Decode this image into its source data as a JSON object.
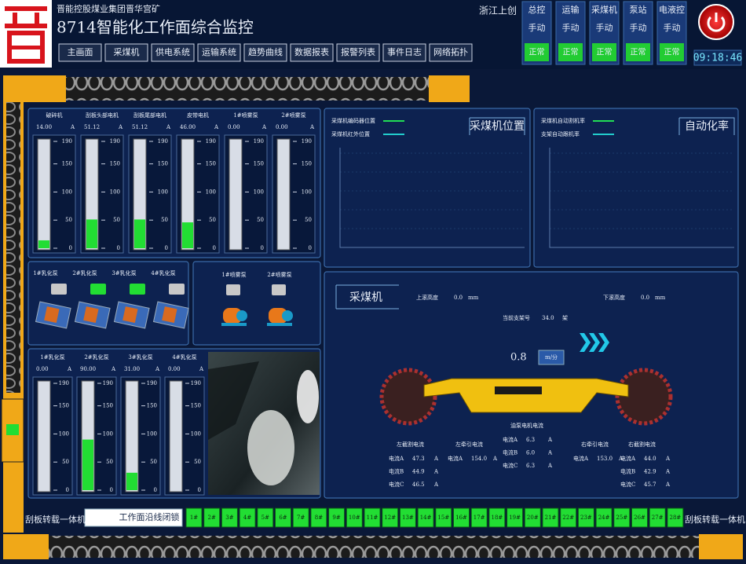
{
  "header": {
    "company": "晋能控股煤业集团晋华宫矿",
    "title": "8714智能化工作面综合监控",
    "brand": "浙江上创",
    "time": "09:18:46",
    "nav": [
      "主画面",
      "采煤机",
      "供电系统",
      "运输系统",
      "趋势曲线",
      "数据报表",
      "报警列表",
      "事件日志",
      "网络拓扑"
    ],
    "status": [
      {
        "name": "总控",
        "mode": "手动",
        "state": "正常"
      },
      {
        "name": "运输",
        "mode": "手动",
        "state": "正常"
      },
      {
        "name": "采煤机",
        "mode": "手动",
        "state": "正常"
      },
      {
        "name": "泵站",
        "mode": "手动",
        "state": "正常"
      },
      {
        "name": "电液控",
        "mode": "手动",
        "state": "正常"
      }
    ]
  },
  "motor_panel": {
    "unit": "A",
    "lim": [
      0,
      190
    ],
    "ticks": [
      0,
      50,
      100,
      150,
      190
    ],
    "gauges": [
      {
        "name": "破碎机",
        "value": 14,
        "label": "14.00"
      },
      {
        "name": "刮板头部电机",
        "value": 51.12,
        "label": "51.12"
      },
      {
        "name": "刮板尾部电机",
        "value": 51.12,
        "label": "51.12"
      },
      {
        "name": "皮带电机",
        "value": 46,
        "label": "46.00"
      },
      {
        "name": "1#喷雾泵",
        "value": 0,
        "label": "0.00"
      },
      {
        "name": "2#喷雾泵",
        "value": 0,
        "label": "0.00"
      }
    ]
  },
  "pump_panel": {
    "pumps": [
      {
        "name": "1#乳化泵",
        "status_color": "#c8c8c8"
      },
      {
        "name": "2#乳化泵",
        "status_color": "#22dd33"
      },
      {
        "name": "3#乳化泵",
        "status_color": "#22dd33"
      },
      {
        "name": "4#乳化泵",
        "status_color": "#c8c8c8"
      }
    ]
  },
  "spray_panel": {
    "pumps": [
      {
        "name": "1#喷雾泵",
        "status_color": "#c8c8c8"
      },
      {
        "name": "2#喷雾泵",
        "status_color": "#c8c8c8"
      }
    ]
  },
  "pressure_panel": {
    "unit": "A",
    "lim": [
      0,
      190
    ],
    "ticks": [
      0,
      50,
      100,
      150,
      190
    ],
    "gauges": [
      {
        "name": "1#乳化泵",
        "value": 0,
        "label": "0.00"
      },
      {
        "name": "2#乳化泵",
        "value": 90,
        "label": "90.00"
      },
      {
        "name": "3#乳化泵",
        "value": 31,
        "label": "31.00"
      },
      {
        "name": "4#乳化泵",
        "value": 0,
        "label": "0.00"
      }
    ]
  },
  "position_chart": {
    "title": "采煤机位置",
    "series": [
      {
        "name": "采煤机编码器位置",
        "color": "#22dd55"
      },
      {
        "name": "采煤机红外位置",
        "color": "#22cccc"
      }
    ]
  },
  "automation_chart": {
    "title": "自动化率",
    "series": [
      {
        "name": "采煤机自动割机率",
        "color": "#22dd55"
      },
      {
        "name": "支架自动跟机率",
        "color": "#22cccc"
      }
    ]
  },
  "shearer": {
    "title": "采煤机",
    "upper": {
      "label": "上滚高度",
      "value": "0.0",
      "unit": "mm"
    },
    "lower": {
      "label": "下滚高度",
      "value": "0.0",
      "unit": "mm"
    },
    "support": {
      "label": "当前支架号",
      "value": "34.0",
      "unit": "架"
    },
    "speed": {
      "value": "0.8",
      "unit": "m/分"
    },
    "currents": [
      {
        "title": "左截割电流",
        "rows": [
          {
            "label": "电流A",
            "value": "47.3",
            "unit": "A"
          },
          {
            "label": "电流B",
            "value": "44.9",
            "unit": "A"
          },
          {
            "label": "电流C",
            "value": "46.5",
            "unit": "A"
          }
        ]
      },
      {
        "title": "左牵引电流",
        "rows": [
          {
            "label": "电流A",
            "value": "154.0",
            "unit": "A"
          }
        ]
      },
      {
        "title": "油泵电机电流",
        "rows": [
          {
            "label": "电流A",
            "value": "6.3",
            "unit": "A"
          },
          {
            "label": "电流B",
            "value": "6.0",
            "unit": "A"
          },
          {
            "label": "电流C",
            "value": "6.3",
            "unit": "A"
          }
        ]
      },
      {
        "title": "右牵引电流",
        "rows": [
          {
            "label": "电流A",
            "value": "153.0",
            "unit": "A"
          }
        ]
      },
      {
        "title": "右截割电流",
        "rows": [
          {
            "label": "电流A",
            "value": "44.0",
            "unit": "A"
          },
          {
            "label": "电流B",
            "value": "42.9",
            "unit": "A"
          },
          {
            "label": "电流C",
            "value": "45.7",
            "unit": "A"
          }
        ]
      }
    ]
  },
  "footer": {
    "left": "刮板转载一体机",
    "right": "刮板转载一体机",
    "button": "工作面沿线闭锁",
    "supports": [
      "1#",
      "2#",
      "3#",
      "4#",
      "5#",
      "6#",
      "7#",
      "8#",
      "9#",
      "10#",
      "11#",
      "12#",
      "13#",
      "14#",
      "15#",
      "16#",
      "17#",
      "18#",
      "19#",
      "20#",
      "21#",
      "22#",
      "23#",
      "24#",
      "25#",
      "26#",
      "27#",
      "28#"
    ]
  }
}
